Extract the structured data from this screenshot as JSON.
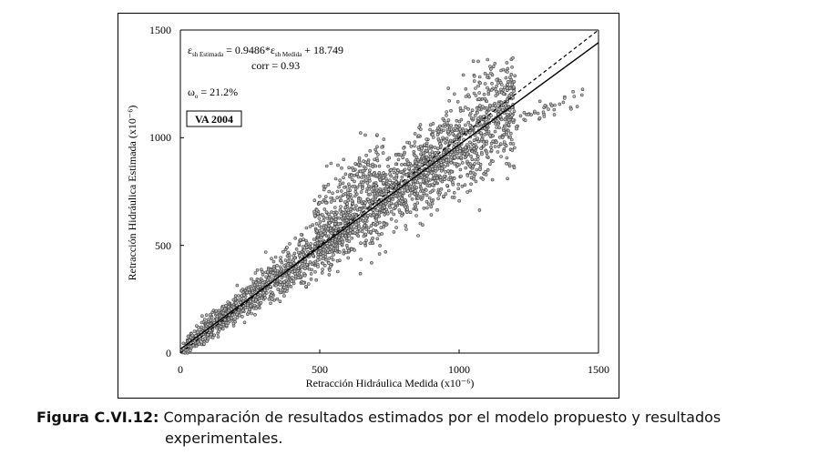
{
  "chart_data": {
    "type": "scatter",
    "title": "",
    "xlabel": "Retracción Hidráulica Medida (x10⁻⁶)",
    "ylabel": "Retracción Hidráulica Estimada (x10⁻⁶)",
    "xlim": [
      0,
      1500
    ],
    "ylim": [
      0,
      1500
    ],
    "x_ticks": [
      "0",
      "500",
      "1000",
      "1500"
    ],
    "y_ticks": [
      "0",
      "500",
      "1000",
      "1500"
    ],
    "equation": {
      "lhs_base": "ε",
      "lhs_sub": "sh Estimada",
      "mid": " = 0.9486*ε",
      "rhs_sub": "sh Medida",
      "tail": " + 18.749",
      "corr": "corr = 0.93"
    },
    "omega": {
      "symbol": "ω",
      "sub": "o",
      "value": " =  21.2%"
    },
    "dataset_label": "VA 2004",
    "regression": {
      "slope": 0.9486,
      "intercept": 18.749,
      "style": "solid"
    },
    "reference_line": {
      "slope": 1,
      "intercept": 0,
      "style": "dashed"
    },
    "points_summary": "approx. 3000 measured vs estimated points scattered along the regression line, x from 0 to ~1450",
    "grid": false,
    "marker_color": "#444444"
  },
  "caption": {
    "label": "Figura C.VI.12:",
    "text_line1": " Comparación de resultados estimados por el modelo propuesto y resultados",
    "text_line2": "experimentales."
  }
}
